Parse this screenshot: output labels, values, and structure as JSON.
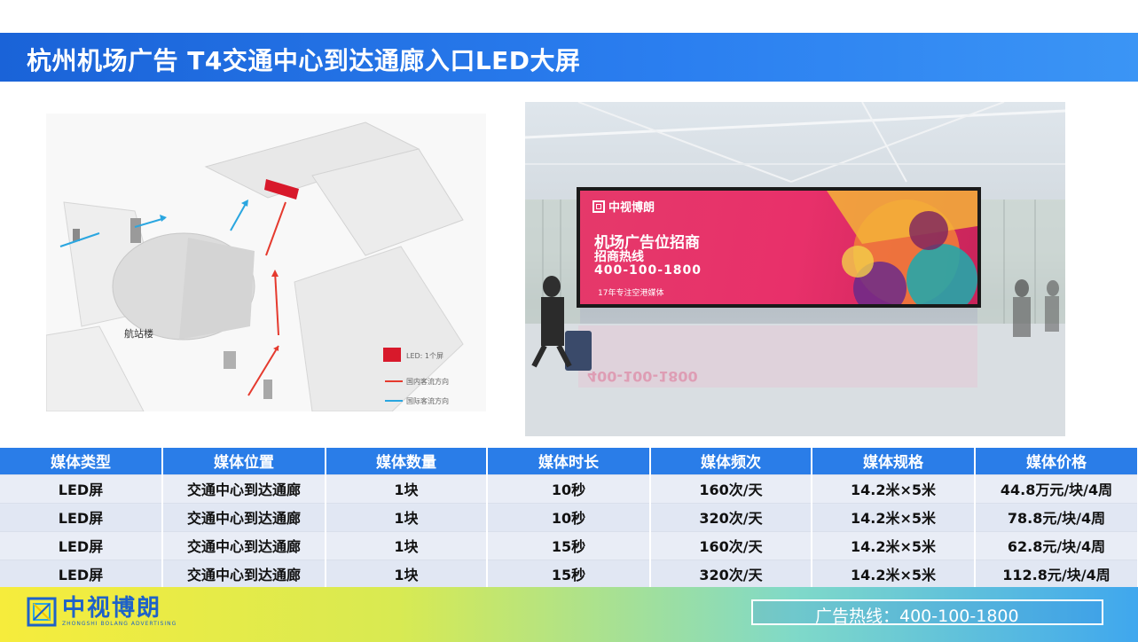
{
  "title": "杭州机场广告   T4交通中心到达通廊入口LED大屏",
  "map": {
    "building_label": "航站楼",
    "legend": [
      {
        "label": "LED: 1个屏",
        "color": "#d8192b"
      },
      {
        "label": "国内客流方向",
        "color": "#e53a2e"
      },
      {
        "label": "国际客流方向",
        "color": "#2aa6e0"
      }
    ]
  },
  "photo": {
    "screen_logo": "中视博朗",
    "line1": "机场广告位招商",
    "line2": "招商热线",
    "line3": "400-100-1800",
    "line4": "17年专注空港媒体",
    "reflection": "400-100-1800"
  },
  "table": {
    "headers": [
      "媒体类型",
      "媒体位置",
      "媒体数量",
      "媒体时长",
      "媒体频次",
      "媒体规格",
      "媒体价格"
    ],
    "rows": [
      [
        "LED屏",
        "交通中心到达通廊",
        "1块",
        "10秒",
        "160次/天",
        "14.2米×5米",
        "44.8万元/块/4周"
      ],
      [
        "LED屏",
        "交通中心到达通廊",
        "1块",
        "10秒",
        "320次/天",
        "14.2米×5米",
        "78.8元/块/4周"
      ],
      [
        "LED屏",
        "交通中心到达通廊",
        "1块",
        "15秒",
        "160次/天",
        "14.2米×5米",
        "62.8元/块/4周"
      ],
      [
        "LED屏",
        "交通中心到达通廊",
        "1块",
        "15秒",
        "320次/天",
        "14.2米×5米",
        "112.8元/块/4周"
      ]
    ]
  },
  "footer": {
    "logo_name": "中视博朗",
    "logo_sub": "ZHONGSHI BOLANG ADVERTISING",
    "hotline": "广告热线：400-100-1800"
  },
  "colors": {
    "title_bar": "#2b7ff0",
    "table_header": "#2a7de8",
    "screen": "#e8306a",
    "logo": "#1e62c8"
  }
}
